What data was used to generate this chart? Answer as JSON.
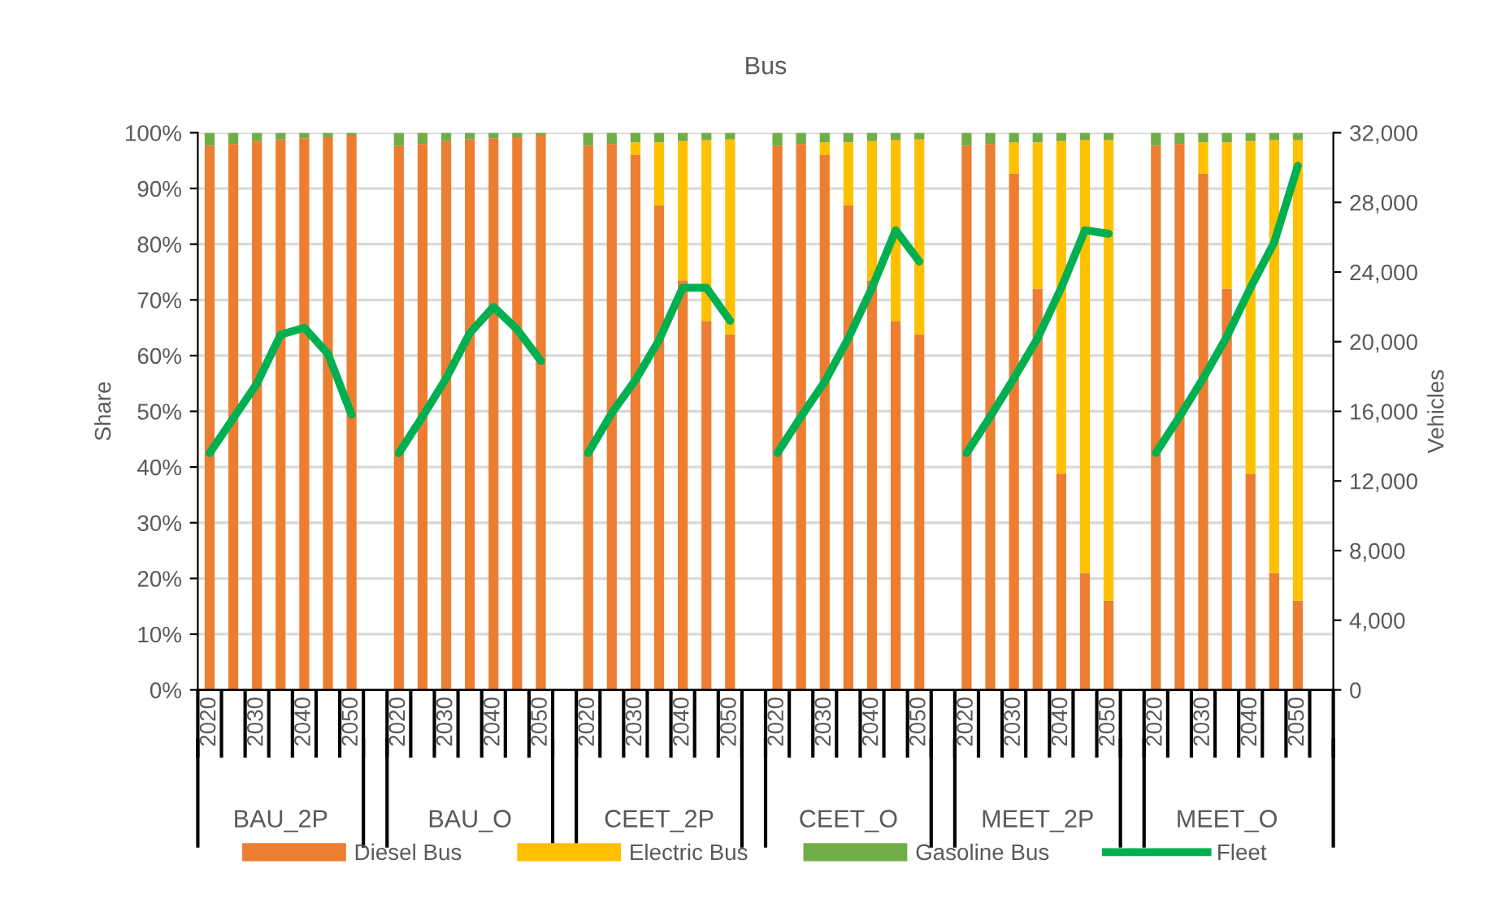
{
  "chart_data": {
    "type": "bar",
    "title": "Bus",
    "ylabel": "Share",
    "y2label": "Vehicles",
    "stacked": true,
    "categories": [
      "2020",
      null,
      "2030",
      null,
      "2040",
      null,
      "2050",
      null,
      "2020",
      null,
      "2030",
      null,
      "2040",
      null,
      "2050",
      null,
      "2020",
      null,
      "2030",
      null,
      "2040",
      null,
      "2050",
      null,
      "2020",
      null,
      "2030",
      null,
      "2040",
      null,
      "2050",
      null,
      "2020",
      null,
      "2030",
      null,
      "2040",
      null,
      "2050",
      null,
      "2020",
      null,
      "2030",
      null,
      "2040",
      null,
      "2050",
      null
    ],
    "annotations": [
      "BAU_2P",
      "BAU_O",
      "CEET_2P",
      "CEET_O",
      "MEET_2P",
      "MEET_O"
    ],
    "series": [
      {
        "name": "Diesel Bus",
        "color": "#ed7d31",
        "values": [
          97.7,
          98.0,
          98.5,
          98.8,
          99.0,
          99.2,
          99.5,
          null,
          97.7,
          98.0,
          98.5,
          98.8,
          99.0,
          99.2,
          99.5,
          null,
          97.7,
          98.0,
          96.0,
          87.0,
          73.5,
          66.2,
          63.8,
          null,
          97.7,
          98.0,
          96.0,
          87.0,
          73.5,
          66.2,
          63.8,
          null,
          97.7,
          98.0,
          92.7,
          72.0,
          38.8,
          21.0,
          16.0,
          null,
          97.7,
          98.0,
          92.7,
          72.0,
          38.8,
          21.0,
          16.0,
          null
        ]
      },
      {
        "name": "Electric Bus",
        "color": "#ffc000",
        "values": [
          0,
          0,
          0,
          0,
          0,
          0,
          0,
          null,
          0,
          0,
          0,
          0,
          0,
          0,
          0,
          null,
          0,
          0,
          2.3,
          11.3,
          25.0,
          32.5,
          35.0,
          null,
          0,
          0,
          2.3,
          11.3,
          25.0,
          32.5,
          35.0,
          null,
          0,
          0,
          5.6,
          26.3,
          59.7,
          77.7,
          82.7,
          null,
          0,
          0,
          5.6,
          26.3,
          59.7,
          77.7,
          82.7,
          null
        ]
      },
      {
        "name": "Gasoline Bus",
        "color": "#70ad47",
        "values": [
          2.3,
          2.0,
          1.5,
          1.2,
          1.0,
          0.8,
          0.5,
          null,
          2.3,
          2.0,
          1.5,
          1.2,
          1.0,
          0.8,
          0.5,
          null,
          2.3,
          2.0,
          1.7,
          1.7,
          1.5,
          1.3,
          1.2,
          null,
          2.3,
          2.0,
          1.7,
          1.7,
          1.5,
          1.3,
          1.2,
          null,
          2.3,
          2.0,
          1.7,
          1.7,
          1.5,
          1.3,
          1.3,
          null,
          2.3,
          2.0,
          1.7,
          1.7,
          1.5,
          1.3,
          1.3,
          null
        ]
      },
      {
        "name": "Fleet",
        "type": "line",
        "axis": "y2",
        "color": "#00b050",
        "values": [
          13600,
          15600,
          17600,
          20400,
          20800,
          19300,
          15800,
          null,
          13600,
          15700,
          17900,
          20500,
          22000,
          20700,
          18900,
          null,
          13600,
          15900,
          17800,
          20100,
          23100,
          23100,
          21200,
          null,
          13600,
          15700,
          17700,
          20200,
          23100,
          26400,
          24600,
          null,
          13600,
          15700,
          17900,
          20200,
          23100,
          26400,
          26200,
          null,
          13600,
          15700,
          17900,
          20300,
          23100,
          25700,
          30100,
          null
        ]
      }
    ],
    "ylim": [
      0,
      100
    ],
    "yticks": [
      {
        "value": 0,
        "label": "0%"
      },
      {
        "value": 10,
        "label": "10%"
      },
      {
        "value": 20,
        "label": "20%"
      },
      {
        "value": 30,
        "label": "30%"
      },
      {
        "value": 40,
        "label": "40%"
      },
      {
        "value": 50,
        "label": "50%"
      },
      {
        "value": 60,
        "label": "60%"
      },
      {
        "value": 70,
        "label": "70%"
      },
      {
        "value": 80,
        "label": "80%"
      },
      {
        "value": 90,
        "label": "90%"
      },
      {
        "value": 100,
        "label": "100%"
      }
    ],
    "y2lim": [
      0,
      32000
    ],
    "y2ticks": [
      0,
      {
        "value": 4000,
        "label": "4,000"
      },
      {
        "value": 8000,
        "label": "8,000"
      },
      {
        "value": 12000,
        "label": "12,000"
      },
      {
        "value": 16000,
        "label": "16,000"
      },
      {
        "value": 20000,
        "label": "20,000"
      },
      {
        "value": 24000,
        "label": "24,000"
      },
      {
        "value": 28000,
        "label": "28,000"
      },
      {
        "value": 32000,
        "label": "32,000"
      }
    ],
    "grid": "y",
    "legend": "bottom"
  }
}
